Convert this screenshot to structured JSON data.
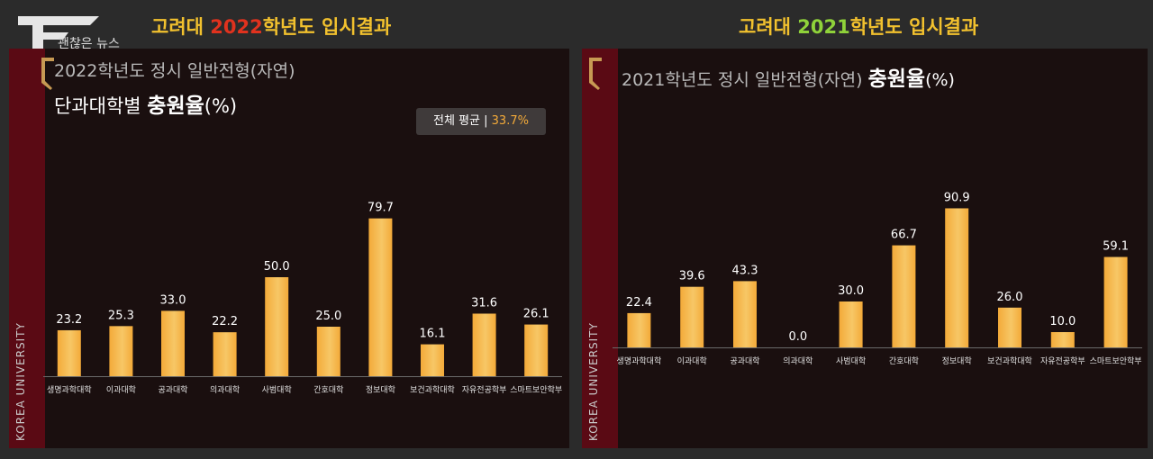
{
  "brand": "괜찮은 뉴스",
  "left": {
    "heading": {
      "pre": "고려대 ",
      "year": "2022",
      "post": "학년도 입시결과"
    },
    "subtitle": "2022학년도 정시 일반전형(자연)",
    "line2_pre": "단과대학별 ",
    "line2_bold": "충원율",
    "line2_unit": "(%)",
    "avg_label": "전체 평균 | ",
    "avg_value": "33.7%",
    "side_text": "KOREA UNIVERSITY"
  },
  "right": {
    "heading": {
      "pre": "고려대 ",
      "year": "2021",
      "post": "학년도 입시결과"
    },
    "subtitle_pre": "2021학년도 정시 일반전형(자연) ",
    "subtitle_bold": "충원율",
    "subtitle_unit": "(%)",
    "side_text": "KOREA UNIVERSITY"
  },
  "colors": {
    "bar": "#f3aa39",
    "bar_light": "#f7c766",
    "heading": "#f2c12e",
    "red_year": "#e0321e",
    "green_year": "#8fd23a"
  },
  "chart_data": [
    {
      "type": "bar",
      "title": "2022학년도 정시 일반전형(자연) 단과대학별 충원율(%)",
      "categories": [
        "생명과학대학",
        "이과대학",
        "공과대학",
        "의과대학",
        "사범대학",
        "간호대학",
        "정보대학",
        "보건과학대학",
        "자유전공학부",
        "스마트보안학부"
      ],
      "values": [
        23.2,
        25.3,
        33.0,
        22.2,
        50.0,
        25.0,
        79.7,
        16.1,
        31.6,
        26.1
      ],
      "value_labels": [
        "23.2",
        "25.3",
        "33.0",
        "22.2",
        "50.0",
        "25.0",
        "79.7",
        "16.1",
        "31.6",
        "26.1"
      ],
      "ylim": [
        0,
        100
      ],
      "grid": false
    },
    {
      "type": "bar",
      "title": "2021학년도 정시 일반전형(자연) 충원율(%)",
      "categories": [
        "생명과학대학",
        "이과대학",
        "공과대학",
        "의과대학",
        "사범대학",
        "간호대학",
        "정보대학",
        "보건과학대학",
        "자유전공학부",
        "스마트보안학부"
      ],
      "values": [
        22.4,
        39.6,
        43.3,
        0.0,
        30.0,
        66.7,
        90.9,
        26.0,
        10.0,
        59.1
      ],
      "value_labels": [
        "22.4",
        "39.6",
        "43.3",
        "0.0",
        "30.0",
        "66.7",
        "90.9",
        "26.0",
        "10.0",
        "59.1"
      ],
      "ylim": [
        0,
        100
      ],
      "grid": false
    }
  ]
}
